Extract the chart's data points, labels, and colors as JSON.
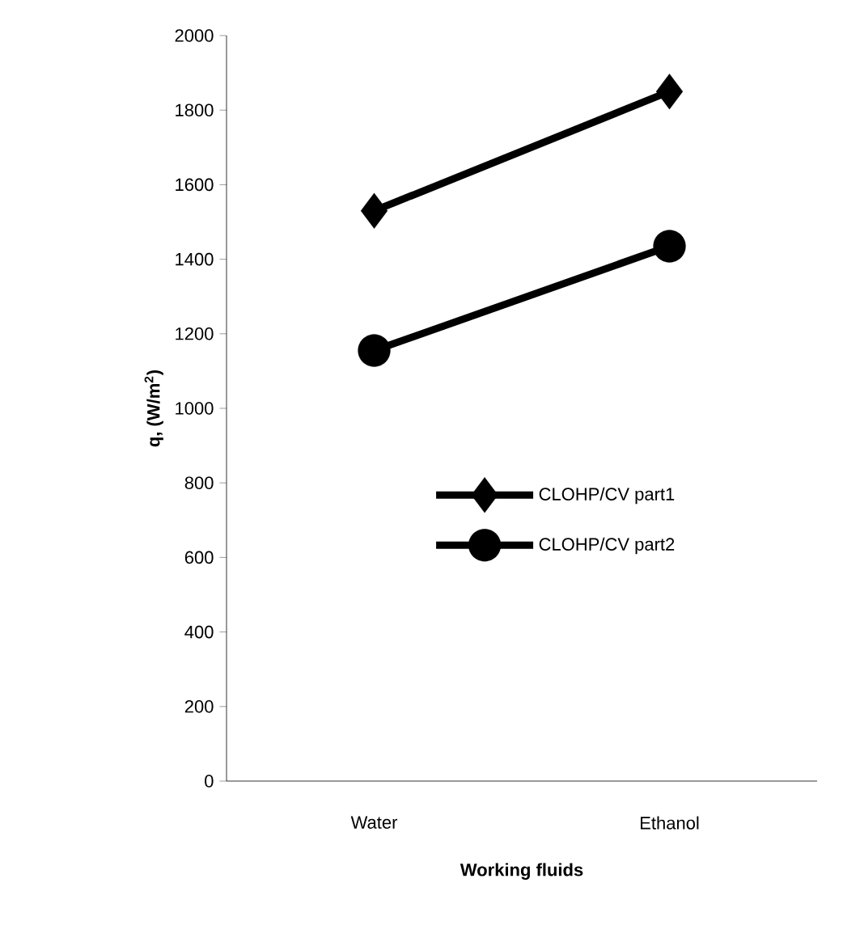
{
  "chart_data": {
    "type": "line",
    "xlabel": "Working fluids",
    "ylabel": "q, (W/m$^{2}$)",
    "categories": [
      "Water",
      "Ethanol"
    ],
    "series": [
      {
        "name": "CLOHP/CV part1",
        "color": "#000000",
        "marker": "diamond",
        "values": [
          1530,
          1850
        ]
      },
      {
        "name": "CLOHP/CV part2",
        "color": "#000000",
        "marker": "circle",
        "values": [
          1155,
          1435
        ]
      }
    ],
    "ylim": [
      0,
      2000
    ],
    "yticks": [
      0,
      200,
      400,
      600,
      800,
      1000,
      1200,
      1400,
      1600,
      1800,
      2000
    ],
    "grid": false,
    "legend": "right",
    "line_style": "solid"
  }
}
